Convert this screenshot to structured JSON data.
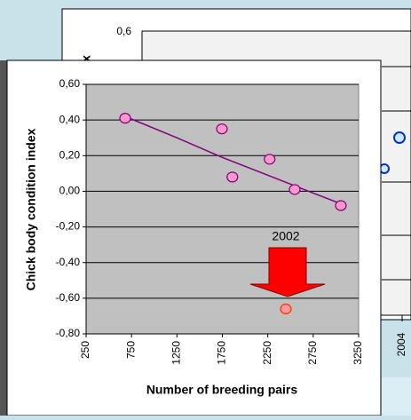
{
  "chart_data": {
    "type": "scatter",
    "y_label": "Chick body condition index",
    "x_label": "Number of breeding pairs",
    "xlim": [
      250,
      3250
    ],
    "xticks": [
      250,
      750,
      1250,
      1750,
      2250,
      2750,
      3250
    ],
    "ylim": [
      -0.8,
      0.6
    ],
    "yticks": [
      {
        "value": 0.6,
        "label": "0,60"
      },
      {
        "value": 0.4,
        "label": "0,40"
      },
      {
        "value": 0.2,
        "label": "0,20"
      },
      {
        "value": 0,
        "label": "0,00"
      },
      {
        "value": -0.2,
        "label": "-0,20"
      },
      {
        "value": -0.4,
        "label": "-0,40"
      },
      {
        "value": -0.6,
        "label": "-0,60"
      },
      {
        "value": -0.8,
        "label": "-0,80"
      }
    ],
    "grid": true,
    "annotation": "2002",
    "series": [
      {
        "type": "line",
        "color": "#800080",
        "x": [
          680,
          1250,
          1750,
          2250,
          2750,
          3054
        ],
        "values": [
          0.42,
          0.3,
          0.19,
          0.09,
          -0.01,
          -0.07
        ]
      },
      {
        "type": "scatter",
        "color": "#ff99cc",
        "x": [
          680,
          1745,
          1860,
          2270,
          2546,
          3054
        ],
        "values": [
          0.41,
          0.35,
          0.08,
          0.18,
          0.01,
          -0.08
        ]
      },
      {
        "type": "scatter",
        "color": "#ff9999",
        "x": [
          2449
        ],
        "values": [
          -0.66
        ]
      }
    ]
  },
  "background_chart": {
    "ytick_label": "0,6",
    "xtick_label": "2004",
    "y_label_fragment": "x"
  }
}
